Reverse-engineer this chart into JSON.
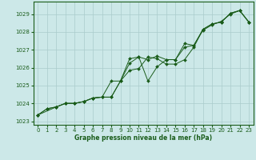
{
  "title": "Graphe pression niveau de la mer (hPa)",
  "bg_color": "#cce8e8",
  "grid_color": "#aacccc",
  "line_color": "#1a5c1a",
  "marker_color": "#1a5c1a",
  "xlim": [
    -0.5,
    23.5
  ],
  "ylim": [
    1022.8,
    1029.7
  ],
  "xticks": [
    0,
    1,
    2,
    3,
    4,
    5,
    6,
    7,
    8,
    9,
    10,
    11,
    12,
    13,
    14,
    15,
    16,
    17,
    18,
    19,
    20,
    21,
    22,
    23
  ],
  "yticks": [
    1023,
    1024,
    1025,
    1026,
    1027,
    1028,
    1029
  ],
  "series1_x": [
    0,
    1,
    2,
    3,
    4,
    5,
    6,
    7,
    8,
    9,
    10,
    11,
    12,
    13,
    14,
    15,
    16,
    17,
    18,
    19,
    20,
    21,
    22,
    23
  ],
  "series1_y": [
    1023.35,
    1023.7,
    1023.8,
    1024.0,
    1024.0,
    1024.1,
    1024.3,
    1024.35,
    1024.35,
    1025.25,
    1025.85,
    1025.95,
    1026.6,
    1026.5,
    1026.2,
    1026.2,
    1026.45,
    1027.15,
    1028.15,
    1028.45,
    1028.55,
    1029.05,
    1029.2,
    1028.55
  ],
  "series2_x": [
    0,
    1,
    2,
    3,
    4,
    5,
    6,
    7,
    8,
    9,
    10,
    11,
    12,
    13,
    14,
    15,
    16,
    17,
    18,
    19,
    20,
    21,
    22,
    23
  ],
  "series2_y": [
    1023.35,
    1023.7,
    1023.8,
    1024.0,
    1024.0,
    1024.1,
    1024.3,
    1024.35,
    1025.25,
    1025.25,
    1026.5,
    1026.6,
    1025.25,
    1026.05,
    1026.45,
    1026.45,
    1027.35,
    1027.25,
    1028.15,
    1028.45,
    1028.55,
    1029.05,
    1029.2,
    1028.55
  ],
  "series3_x": [
    0,
    2,
    3,
    4,
    5,
    6,
    7,
    8,
    9,
    10,
    11,
    12,
    13,
    14,
    15,
    16,
    17,
    18,
    19,
    20,
    21,
    22,
    23
  ],
  "series3_y": [
    1023.35,
    1023.8,
    1024.0,
    1024.0,
    1024.1,
    1024.3,
    1024.35,
    1024.35,
    1025.25,
    1026.25,
    1026.6,
    1026.45,
    1026.65,
    1026.45,
    1026.45,
    1027.15,
    1027.25,
    1028.1,
    1028.4,
    1028.6,
    1029.0,
    1029.2,
    1028.55
  ]
}
